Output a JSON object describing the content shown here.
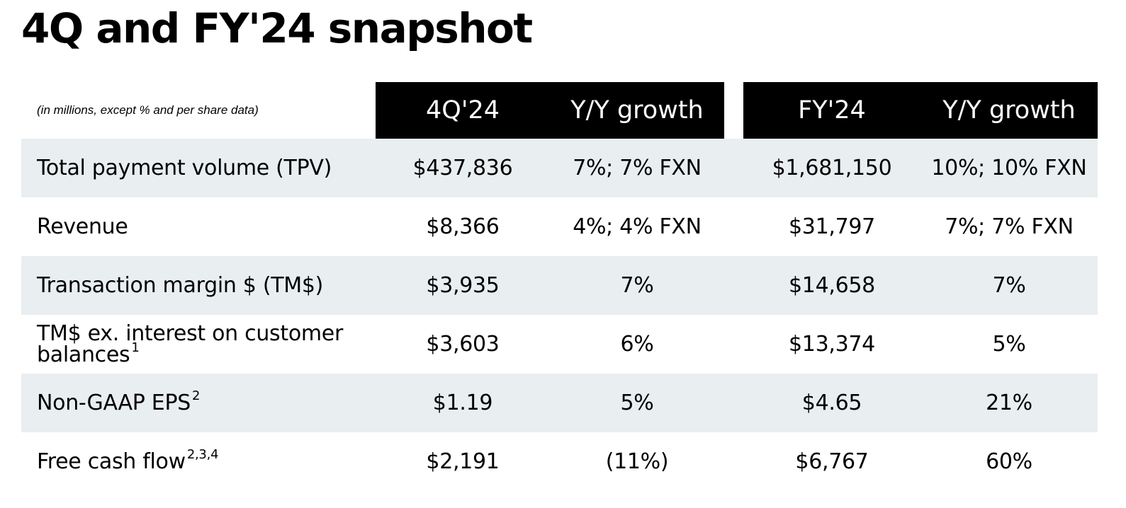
{
  "title": "4Q and FY'24 snapshot",
  "table": {
    "units_note": "(in millions, except % and per share data)",
    "headers": {
      "q4": "4Q'24",
      "q4_growth": "Y/Y growth",
      "fy": "FY'24",
      "fy_growth": "Y/Y growth"
    },
    "rows": [
      {
        "label": "Total payment volume (TPV)",
        "superscript": "",
        "q4": "$437,836",
        "q4_growth": "7%; 7% FXN",
        "fy": "$1,681,150",
        "fy_growth": "10%; 10% FXN"
      },
      {
        "label": "Revenue",
        "superscript": "",
        "q4": "$8,366",
        "q4_growth": "4%; 4% FXN",
        "fy": "$31,797",
        "fy_growth": "7%; 7% FXN"
      },
      {
        "label": "Transaction margin $ (TM$)",
        "superscript": "",
        "q4": "$3,935",
        "q4_growth": "7%",
        "fy": "$14,658",
        "fy_growth": "7%"
      },
      {
        "label": "TM$ ex. interest on customer balances",
        "superscript": "1",
        "q4": "$3,603",
        "q4_growth": "6%",
        "fy": "$13,374",
        "fy_growth": "5%"
      },
      {
        "label": "Non-GAAP EPS",
        "superscript": "2",
        "q4": "$1.19",
        "q4_growth": "5%",
        "fy": "$4.65",
        "fy_growth": "21%"
      },
      {
        "label": "Free cash flow",
        "superscript": "2,3,4",
        "q4": "$2,191",
        "q4_growth": "(11%)",
        "fy": "$6,767",
        "fy_growth": "60%"
      }
    ]
  }
}
